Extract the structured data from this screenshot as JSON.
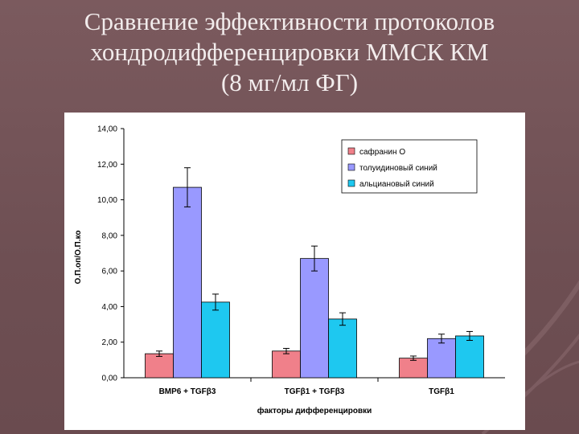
{
  "slide": {
    "title_line1": "Сравнение эффективности протоколов",
    "title_line2": "хондродифференцировки ММСК КМ",
    "title_line3": "(8 мг/мл ФГ)"
  },
  "chart_data": {
    "type": "bar",
    "title": "",
    "xlabel": "факторы дифференцировки",
    "ylabel": "О.П.оп/О.П.ко",
    "ylim": [
      0,
      14
    ],
    "ytick_labels": [
      "0,00",
      "2,00",
      "4,00",
      "6,00",
      "8,00",
      "10,00",
      "12,00",
      "14,00"
    ],
    "grid": false,
    "legend_position": "top-right",
    "categories": [
      "BMP6 + TGFβ3",
      "TGFβ1 + TGFβ3",
      "TGFβ1"
    ],
    "series": [
      {
        "name": "сафранин О",
        "color": "#f0808a",
        "values": [
          1.35,
          1.5,
          1.1
        ],
        "errors": [
          0.15,
          0.15,
          0.12
        ]
      },
      {
        "name": "толуидиновый синий",
        "color": "#9999ff",
        "values": [
          10.7,
          6.7,
          2.2
        ],
        "errors": [
          1.1,
          0.7,
          0.25
        ]
      },
      {
        "name": "альциановый синий",
        "color": "#1ec8f0",
        "values": [
          4.25,
          3.3,
          2.35
        ],
        "errors": [
          0.45,
          0.35,
          0.25
        ]
      }
    ]
  }
}
